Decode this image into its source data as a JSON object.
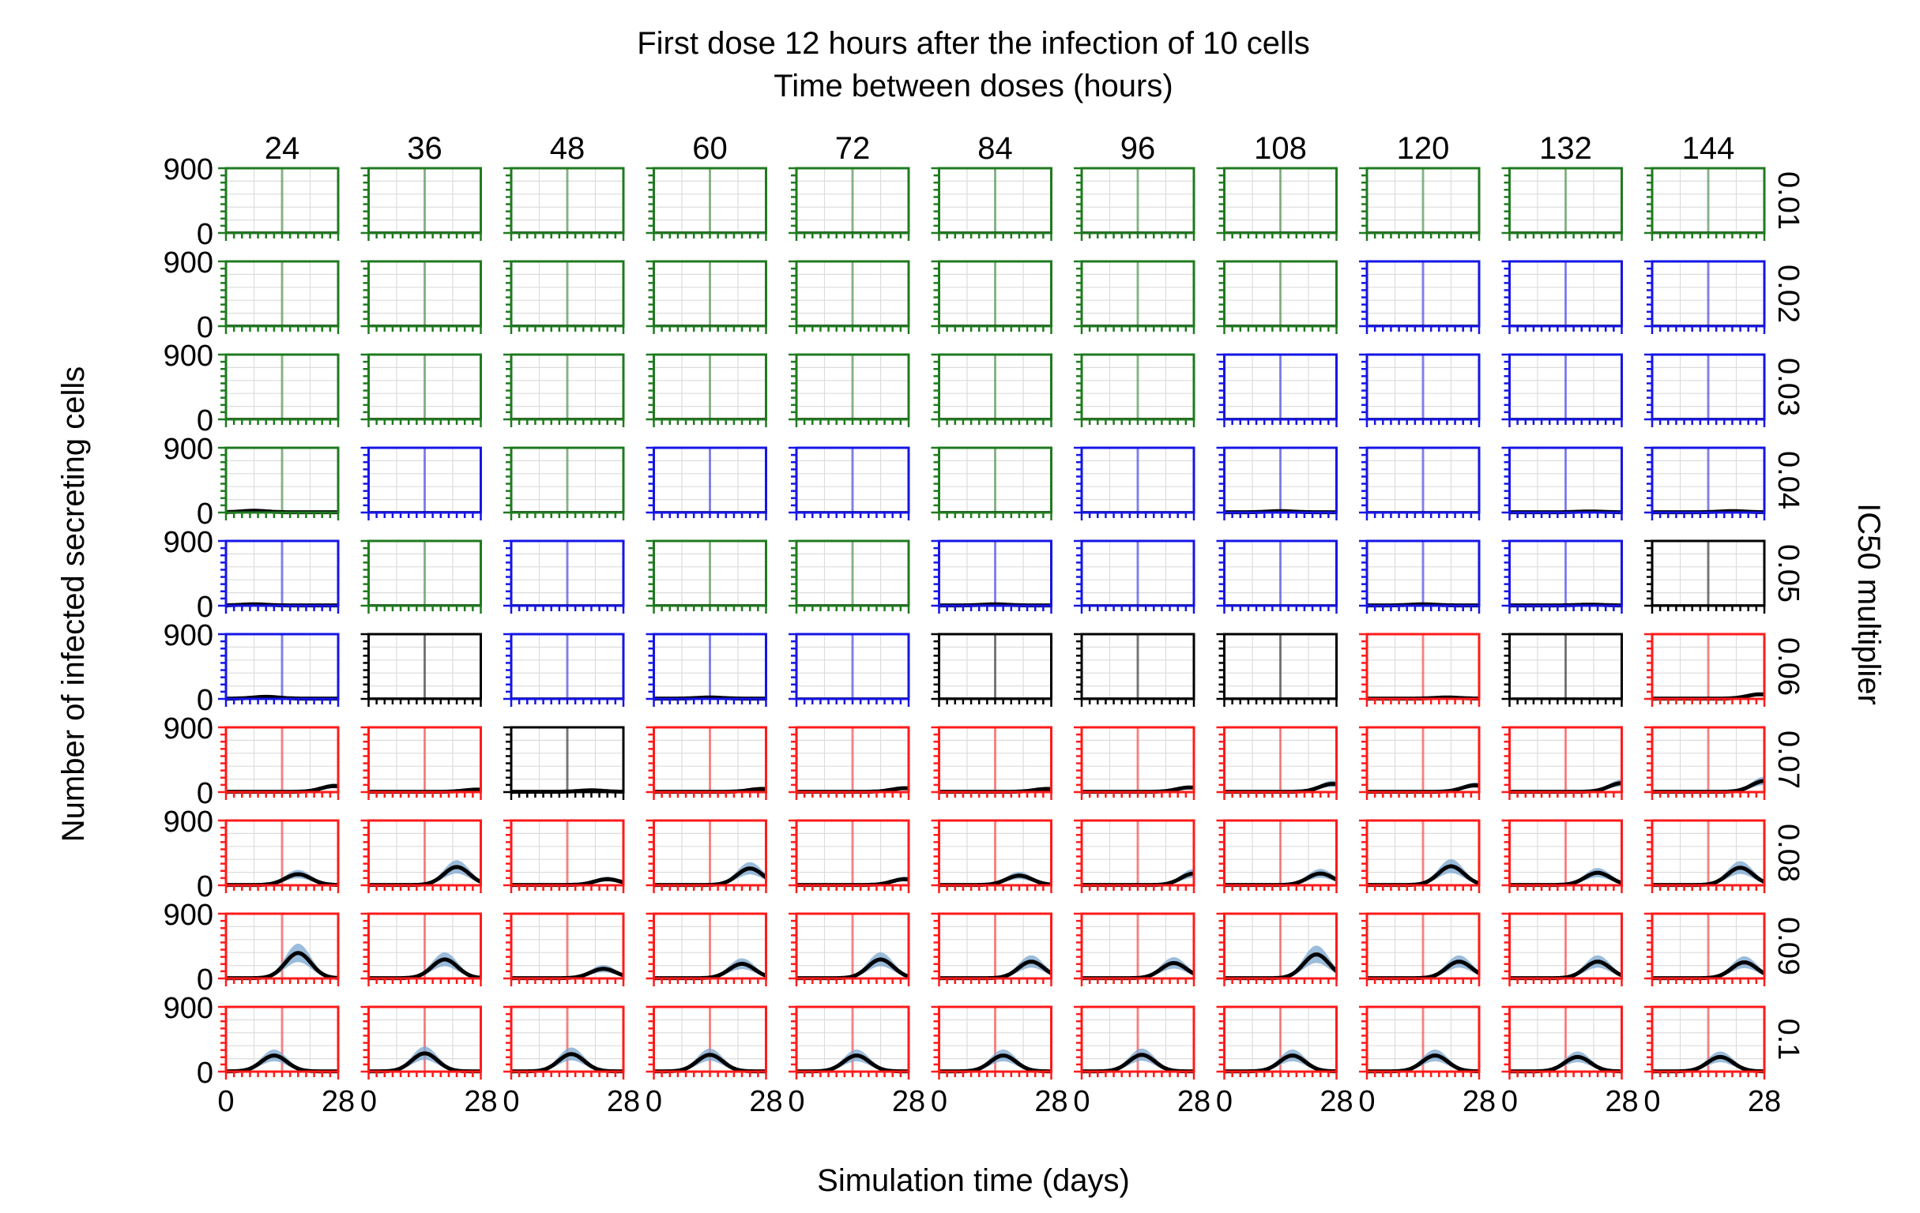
{
  "chart_data": {
    "type": "line",
    "title": "First dose 12 hours after the infection of 10 cells",
    "column_header": "Time between doses (hours)",
    "xlabel": "Simulation time (days)",
    "ylabel": "Number of infected secreting cells",
    "right_label": "IC50 multiplier",
    "columns": [
      "24",
      "36",
      "48",
      "60",
      "72",
      "84",
      "96",
      "108",
      "120",
      "132",
      "144"
    ],
    "rows": [
      "0.01",
      "0.02",
      "0.03",
      "0.04",
      "0.05",
      "0.06",
      "0.07",
      "0.08",
      "0.09",
      "0.1"
    ],
    "xlim": [
      0,
      28
    ],
    "ylim": [
      0,
      900
    ],
    "x_tick_labels": [
      "0",
      "28"
    ],
    "y_tick_labels": [
      "900",
      "0"
    ],
    "dose_marker_day": 14,
    "colors": {
      "green": "#1f7a1f",
      "blue": "#1515e6",
      "black": "#000000",
      "red": "#ff1a1a",
      "band": "#7aa6cf",
      "mean": "#000000"
    },
    "frame_colors": [
      [
        "green",
        "green",
        "green",
        "green",
        "green",
        "green",
        "green",
        "green",
        "green",
        "green",
        "green"
      ],
      [
        "green",
        "green",
        "green",
        "green",
        "green",
        "green",
        "green",
        "green",
        "blue",
        "blue",
        "blue"
      ],
      [
        "green",
        "green",
        "green",
        "green",
        "green",
        "green",
        "green",
        "blue",
        "blue",
        "blue",
        "blue"
      ],
      [
        "green",
        "blue",
        "green",
        "blue",
        "blue",
        "green",
        "blue",
        "blue",
        "blue",
        "blue",
        "blue"
      ],
      [
        "blue",
        "green",
        "blue",
        "green",
        "green",
        "blue",
        "blue",
        "blue",
        "blue",
        "blue",
        "black"
      ],
      [
        "blue",
        "black",
        "blue",
        "blue",
        "blue",
        "black",
        "black",
        "black",
        "red",
        "black",
        "red"
      ],
      [
        "red",
        "red",
        "black",
        "red",
        "red",
        "red",
        "red",
        "red",
        "red",
        "red",
        "red"
      ],
      [
        "red",
        "red",
        "red",
        "red",
        "red",
        "red",
        "red",
        "red",
        "red",
        "red",
        "red"
      ],
      [
        "red",
        "red",
        "red",
        "red",
        "red",
        "red",
        "red",
        "red",
        "red",
        "red",
        "red"
      ],
      [
        "red",
        "red",
        "red",
        "red",
        "red",
        "red",
        "red",
        "red",
        "red",
        "red",
        "red"
      ]
    ],
    "peaks": [
      [
        0,
        0,
        0,
        0,
        0,
        0,
        0,
        0,
        0,
        0,
        0
      ],
      [
        0,
        0,
        0,
        0,
        0,
        0,
        0,
        0,
        0,
        0,
        0
      ],
      [
        0,
        0,
        0,
        0,
        0,
        0,
        0,
        0,
        0,
        0,
        0
      ],
      [
        20,
        0,
        0,
        0,
        0,
        0,
        0,
        15,
        0,
        10,
        15
      ],
      [
        15,
        0,
        0,
        0,
        0,
        15,
        0,
        0,
        15,
        10,
        0
      ],
      [
        25,
        0,
        0,
        15,
        0,
        0,
        0,
        0,
        15,
        0,
        60
      ],
      [
        80,
        30,
        20,
        40,
        50,
        40,
        60,
        110,
        90,
        120,
        150
      ],
      [
        150,
        250,
        80,
        230,
        80,
        130,
        160,
        160,
        260,
        170,
        240
      ],
      [
        350,
        260,
        130,
        200,
        260,
        230,
        210,
        330,
        230,
        230,
        220
      ],
      [
        220,
        250,
        240,
        230,
        220,
        220,
        230,
        220,
        220,
        200,
        200
      ]
    ],
    "peak_days": [
      [
        0,
        0,
        0,
        0,
        0,
        0,
        0,
        0,
        0,
        0,
        0
      ],
      [
        0,
        0,
        0,
        0,
        0,
        0,
        0,
        0,
        0,
        0,
        0
      ],
      [
        0,
        0,
        0,
        0,
        0,
        0,
        0,
        0,
        0,
        0,
        0
      ],
      [
        7,
        0,
        0,
        0,
        0,
        0,
        0,
        14,
        0,
        20,
        20
      ],
      [
        7,
        0,
        0,
        0,
        0,
        14,
        0,
        0,
        14,
        20,
        0
      ],
      [
        10,
        0,
        0,
        14,
        0,
        0,
        0,
        0,
        20,
        0,
        27
      ],
      [
        27,
        27,
        20,
        27,
        27,
        27,
        27,
        27,
        27,
        28,
        28
      ],
      [
        18,
        22,
        24,
        24,
        27,
        20,
        28,
        24,
        21,
        22,
        22
      ],
      [
        18,
        19,
        23,
        22,
        21,
        23,
        23,
        23,
        23,
        22,
        23
      ],
      [
        12,
        14,
        15,
        14,
        15,
        16,
        15,
        17,
        17,
        17,
        17
      ]
    ]
  }
}
